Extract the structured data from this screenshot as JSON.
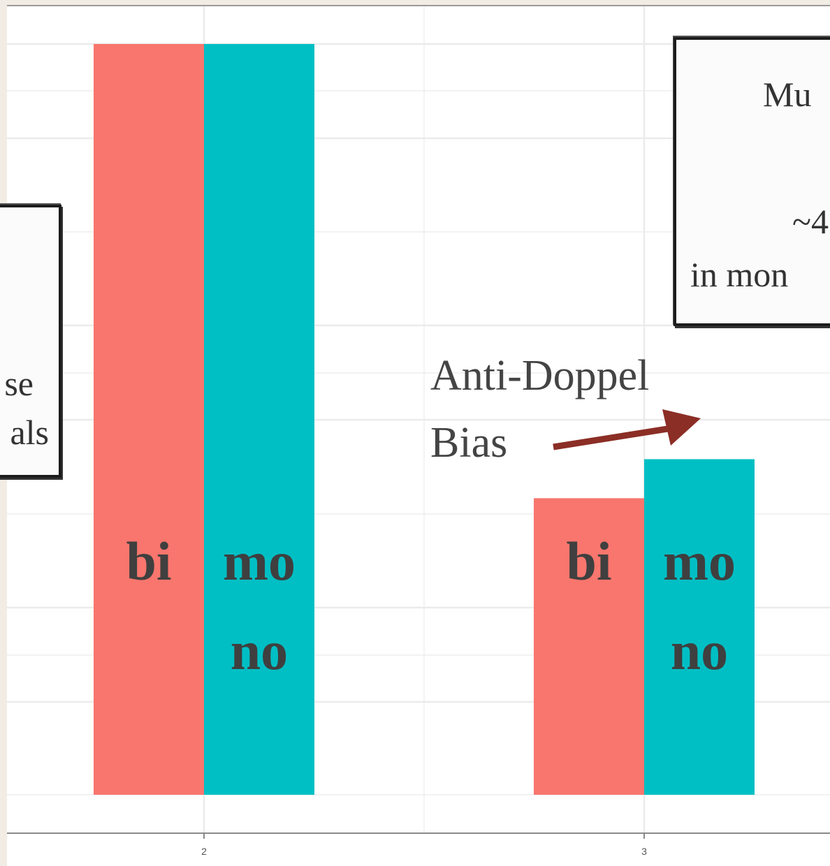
{
  "chart_data": {
    "type": "bar",
    "categories": [
      "2",
      "3"
    ],
    "series": [
      {
        "name": "bi",
        "values": [
          1.0,
          0.395
        ]
      },
      {
        "name": "mono",
        "values": [
          1.0,
          0.447
        ]
      }
    ],
    "ylim": [
      0,
      1.07
    ],
    "grid": true,
    "colors": {
      "bi": "#f8766d",
      "mono": "#00bfc4"
    },
    "bar_labels": [
      {
        "top": "bi",
        "bottom": ""
      },
      {
        "top": "mo",
        "bottom": "no"
      },
      {
        "top": "bi",
        "bottom": ""
      },
      {
        "top": "mo",
        "bottom": "no"
      }
    ]
  },
  "annotations": {
    "arrow_label_line1": "Anti-Doppel",
    "arrow_label_line2": "Bias",
    "arrow_color": "#8b2e26",
    "left_box_line1": "se",
    "left_box_line2": "als",
    "right_box_line1": "Mu",
    "right_box_line2": "~4",
    "right_box_line3": "in mon"
  }
}
